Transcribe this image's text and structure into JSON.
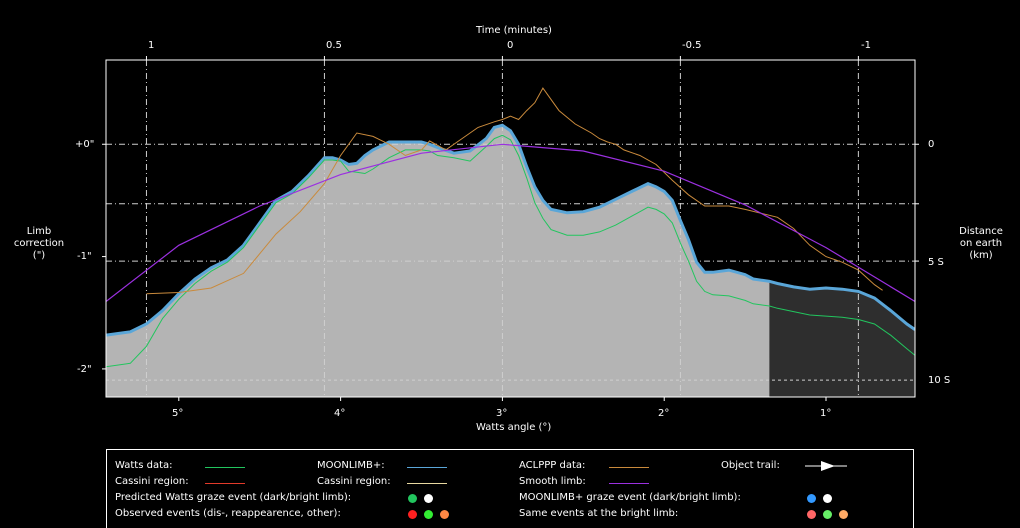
{
  "axes": {
    "top_title": "Time (minutes)",
    "bottom_title": "Watts angle (°)",
    "left_title": [
      "Limb",
      "correction",
      "(\")"
    ],
    "right_title": [
      "Distance",
      "on earth",
      "(km)"
    ],
    "top_ticks": [
      "1",
      "0.5",
      "0",
      "-0.5",
      "-1"
    ],
    "bottom_ticks": [
      "5°",
      "4°",
      "3°",
      "2°",
      "1°"
    ],
    "left_ticks": [
      "+0\"",
      "-1\"",
      "-2\""
    ],
    "right_ticks": [
      "0",
      "5 S",
      "10 S"
    ]
  },
  "legend": {
    "watts_data": "Watts data:",
    "cassini_region_1": "Cassini region:",
    "moonlimb": "MOONLIMB+:",
    "cassini_region_2": "Cassini region:",
    "aclppp": "ACLPPP data:",
    "smooth_limb": "Smooth limb:",
    "object_trail": "Object trail:",
    "predicted_watts": "Predicted Watts graze event (dark/bright limb):",
    "moonlimb_graze": "MOONLIMB+ graze event (dark/bright limb):",
    "observed": "Observed events (dis-, reappearence, other):",
    "same_bright": "Same events at the bright limb:"
  },
  "colors": {
    "watts": "#22c55e",
    "cassini": "#e23a2a",
    "moonlimb": "#5aa6d8",
    "cassini2": "#e8d8a0",
    "aclppp": "#c98a3c",
    "smooth": "#9b30e0",
    "fill": "#b4b4b4",
    "dark_fill": "#2e2e2e"
  },
  "chart_data": {
    "type": "line",
    "xlabel": "Watts angle (°)",
    "ylabel": "Limb correction (\")",
    "xlim": [
      5.45,
      0.45
    ],
    "ylim": [
      -2.25,
      0.75
    ],
    "top_axis": {
      "label": "Time (minutes)",
      "ticks": [
        1,
        0.5,
        0,
        -0.5,
        -1
      ]
    },
    "right_axis": {
      "label": "Distance on earth (km)",
      "ticks": [
        "0",
        "5 S",
        "10 S"
      ]
    },
    "dark_limb_start_x": 1.33,
    "series": [
      {
        "name": "MOONLIMB+",
        "x": [
          5.45,
          5.3,
          5.2,
          5.1,
          5.0,
          4.9,
          4.8,
          4.7,
          4.6,
          4.5,
          4.4,
          4.3,
          4.2,
          4.1,
          4.05,
          4.0,
          3.95,
          3.9,
          3.85,
          3.8,
          3.7,
          3.6,
          3.5,
          3.45,
          3.4,
          3.3,
          3.2,
          3.1,
          3.05,
          3.0,
          2.95,
          2.9,
          2.85,
          2.8,
          2.75,
          2.7,
          2.6,
          2.5,
          2.4,
          2.3,
          2.2,
          2.1,
          2.05,
          2.0,
          1.95,
          1.9,
          1.85,
          1.8,
          1.75,
          1.7,
          1.6,
          1.5,
          1.45,
          1.4,
          1.35,
          1.3,
          1.2,
          1.1,
          1.0,
          0.9,
          0.8,
          0.7,
          0.6,
          0.5,
          0.45
        ],
        "y": [
          -1.7,
          -1.67,
          -1.6,
          -1.48,
          -1.33,
          -1.2,
          -1.1,
          -1.03,
          -0.9,
          -0.7,
          -0.5,
          -0.42,
          -0.28,
          -0.12,
          -0.12,
          -0.14,
          -0.18,
          -0.17,
          -0.1,
          -0.05,
          0.02,
          0.02,
          0.02,
          0.0,
          -0.03,
          -0.08,
          -0.06,
          0.05,
          0.15,
          0.17,
          0.12,
          0.0,
          -0.2,
          -0.38,
          -0.5,
          -0.58,
          -0.61,
          -0.6,
          -0.56,
          -0.49,
          -0.42,
          -0.35,
          -0.38,
          -0.42,
          -0.5,
          -0.68,
          -0.85,
          -1.05,
          -1.14,
          -1.14,
          -1.12,
          -1.16,
          -1.2,
          -1.21,
          -1.22,
          -1.24,
          -1.27,
          -1.29,
          -1.28,
          -1.29,
          -1.31,
          -1.37,
          -1.48,
          -1.6,
          -1.65
        ]
      },
      {
        "name": "Watts",
        "x": [
          5.45,
          5.3,
          5.2,
          5.1,
          5.0,
          4.9,
          4.8,
          4.7,
          4.6,
          4.5,
          4.4,
          4.3,
          4.2,
          4.1,
          4.05,
          4.0,
          3.95,
          3.9,
          3.85,
          3.8,
          3.7,
          3.6,
          3.5,
          3.45,
          3.4,
          3.3,
          3.2,
          3.1,
          3.05,
          3.0,
          2.95,
          2.9,
          2.85,
          2.8,
          2.75,
          2.7,
          2.6,
          2.5,
          2.4,
          2.3,
          2.2,
          2.1,
          2.05,
          2.0,
          1.95,
          1.9,
          1.85,
          1.8,
          1.75,
          1.7,
          1.6,
          1.5,
          1.45,
          1.4,
          1.35,
          1.3,
          1.2,
          1.1,
          1.0,
          0.9,
          0.8,
          0.7,
          0.6,
          0.5,
          0.45
        ],
        "y": [
          -1.98,
          -1.95,
          -1.8,
          -1.55,
          -1.38,
          -1.24,
          -1.13,
          -1.05,
          -0.92,
          -0.72,
          -0.52,
          -0.44,
          -0.3,
          -0.14,
          -0.14,
          -0.15,
          -0.24,
          -0.25,
          -0.26,
          -0.22,
          -0.12,
          -0.05,
          -0.05,
          -0.06,
          -0.1,
          -0.12,
          -0.15,
          -0.02,
          0.05,
          0.08,
          0.04,
          -0.1,
          -0.3,
          -0.52,
          -0.66,
          -0.76,
          -0.81,
          -0.81,
          -0.78,
          -0.72,
          -0.64,
          -0.56,
          -0.58,
          -0.62,
          -0.7,
          -0.88,
          -1.04,
          -1.22,
          -1.31,
          -1.34,
          -1.35,
          -1.39,
          -1.42,
          -1.43,
          -1.44,
          -1.46,
          -1.49,
          -1.52,
          -1.53,
          -1.54,
          -1.56,
          -1.6,
          -1.7,
          -1.82,
          -1.88
        ]
      },
      {
        "name": "ACLPPP",
        "x": [
          5.2,
          5.0,
          4.8,
          4.6,
          4.4,
          4.25,
          4.1,
          4.0,
          3.9,
          3.8,
          3.7,
          3.6,
          3.5,
          3.45,
          3.35,
          3.25,
          3.15,
          3.05,
          3.0,
          2.95,
          2.9,
          2.85,
          2.8,
          2.75,
          2.65,
          2.55,
          2.45,
          2.4,
          2.35,
          2.3,
          2.25,
          2.15,
          2.05,
          1.95,
          1.85,
          1.75,
          1.6,
          1.5,
          1.3,
          1.2,
          1.1,
          1.0,
          0.9,
          0.8,
          0.7,
          0.65
        ],
        "y": [
          -1.33,
          -1.32,
          -1.28,
          -1.15,
          -0.8,
          -0.6,
          -0.35,
          -0.1,
          0.1,
          0.07,
          0.0,
          -0.1,
          -0.05,
          0.03,
          -0.05,
          0.05,
          0.15,
          0.2,
          0.22,
          0.25,
          0.22,
          0.3,
          0.37,
          0.5,
          0.3,
          0.18,
          0.1,
          0.05,
          0.02,
          0.0,
          -0.05,
          -0.1,
          -0.18,
          -0.32,
          -0.45,
          -0.55,
          -0.55,
          -0.58,
          -0.65,
          -0.75,
          -0.9,
          -1.0,
          -1.05,
          -1.12,
          -1.25,
          -1.3
        ]
      },
      {
        "name": "Smooth limb",
        "x": [
          5.45,
          5.0,
          4.5,
          4.0,
          3.5,
          3.0,
          2.5,
          2.0,
          1.5,
          1.0,
          0.45
        ],
        "y": [
          -1.4,
          -0.9,
          -0.55,
          -0.27,
          -0.08,
          0.0,
          -0.06,
          -0.24,
          -0.54,
          -0.92,
          -1.4
        ]
      }
    ]
  }
}
